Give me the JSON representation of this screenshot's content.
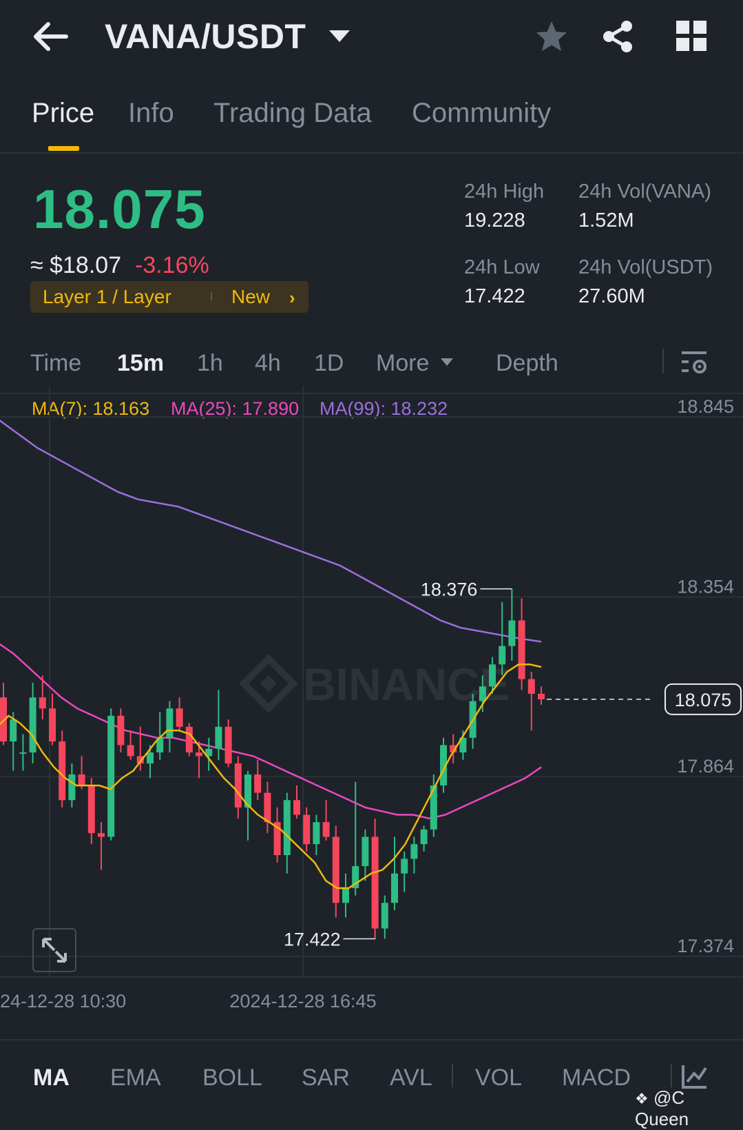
{
  "header": {
    "pair": "VANA/USDT",
    "icons": [
      "back-arrow-icon",
      "chevron-down-icon",
      "star-icon",
      "share-icon",
      "grid-icon"
    ]
  },
  "tabs": [
    {
      "label": "Price",
      "active": true
    },
    {
      "label": "Info",
      "active": false
    },
    {
      "label": "Trading Data",
      "active": false
    },
    {
      "label": "Community",
      "active": false
    }
  ],
  "ticker": {
    "last_price": "18.075",
    "fiat_price": "≈ $18.07",
    "change_pct": "-3.16%",
    "tag_category": "Layer 1 / Layer",
    "tag_new": "New",
    "high_label": "24h High",
    "high_value": "19.228",
    "low_label": "24h Low",
    "low_value": "17.422",
    "vol_base_label": "24h Vol(VANA)",
    "vol_base_value": "1.52M",
    "vol_quote_label": "24h Vol(USDT)",
    "vol_quote_value": "27.60M",
    "colors": {
      "up": "#2ebd85",
      "down": "#f6465d",
      "accent": "#f0b90b"
    }
  },
  "intervals": [
    {
      "label": "Time",
      "active": false
    },
    {
      "label": "15m",
      "active": true
    },
    {
      "label": "1h",
      "active": false
    },
    {
      "label": "4h",
      "active": false
    },
    {
      "label": "1D",
      "active": false
    },
    {
      "label": "More",
      "active": false
    },
    {
      "label": "Depth",
      "active": false
    }
  ],
  "ma_legend": {
    "ma7": "MA(7): 18.163",
    "ma25": "MA(25): 17.890",
    "ma99": "MA(99): 18.232"
  },
  "chart_data": {
    "type": "candlestick",
    "y_ticks": [
      "18.845",
      "18.354",
      "17.864",
      "17.374"
    ],
    "y_range": [
      17.34,
      18.9
    ],
    "x_labels": [
      "24-12-28 10:30",
      "2024-12-28 16:45"
    ],
    "current_price_label": "18.075",
    "current_price": 18.075,
    "high_marker": {
      "label": "18.376",
      "value": 18.376
    },
    "low_marker": {
      "label": "17.422",
      "value": 17.422
    },
    "watermark": "BINANCE",
    "colors": {
      "up": "#2ebd85",
      "down": "#f6465d",
      "ma7": "#f0b90b",
      "ma25": "#eb48c0",
      "ma99": "#9d6fe0"
    },
    "candles": [
      [
        18.08,
        18.12,
        17.95,
        17.96
      ],
      [
        17.96,
        18.04,
        17.88,
        18.02
      ],
      [
        17.93,
        17.98,
        17.88,
        17.93
      ],
      [
        17.93,
        18.12,
        17.9,
        18.08
      ],
      [
        18.08,
        18.14,
        18.02,
        18.05
      ],
      [
        18.05,
        18.09,
        17.95,
        17.96
      ],
      [
        17.96,
        17.99,
        17.78,
        17.8
      ],
      [
        17.8,
        17.9,
        17.78,
        17.87
      ],
      [
        17.87,
        17.92,
        17.83,
        17.84
      ],
      [
        17.84,
        17.86,
        17.68,
        17.71
      ],
      [
        17.71,
        17.74,
        17.61,
        17.7
      ],
      [
        17.7,
        18.05,
        17.69,
        18.03
      ],
      [
        18.03,
        18.05,
        17.93,
        17.95
      ],
      [
        17.95,
        17.99,
        17.91,
        17.92
      ],
      [
        17.92,
        18.0,
        17.88,
        17.9
      ],
      [
        17.9,
        17.95,
        17.86,
        17.93
      ],
      [
        17.93,
        18.04,
        17.91,
        17.97
      ],
      [
        17.97,
        18.07,
        17.93,
        18.05
      ],
      [
        18.05,
        18.08,
        17.99,
        18.0
      ],
      [
        18.0,
        18.01,
        17.92,
        17.93
      ],
      [
        17.93,
        17.96,
        17.86,
        17.92
      ],
      [
        17.92,
        17.97,
        17.88,
        17.94
      ],
      [
        17.94,
        18.1,
        17.91,
        18.0
      ],
      [
        18.0,
        18.02,
        17.89,
        17.9
      ],
      [
        17.9,
        17.92,
        17.75,
        17.78
      ],
      [
        17.78,
        17.88,
        17.69,
        17.87
      ],
      [
        17.87,
        17.91,
        17.8,
        17.82
      ],
      [
        17.82,
        17.85,
        17.71,
        17.74
      ],
      [
        17.74,
        17.78,
        17.63,
        17.65
      ],
      [
        17.65,
        17.82,
        17.6,
        17.8
      ],
      [
        17.8,
        17.84,
        17.75,
        17.76
      ],
      [
        17.76,
        17.78,
        17.66,
        17.68
      ],
      [
        17.68,
        17.76,
        17.65,
        17.74
      ],
      [
        17.74,
        17.8,
        17.69,
        17.7
      ],
      [
        17.7,
        17.73,
        17.48,
        17.52
      ],
      [
        17.52,
        17.6,
        17.48,
        17.56
      ],
      [
        17.56,
        17.85,
        17.54,
        17.62
      ],
      [
        17.62,
        17.72,
        17.58,
        17.7
      ],
      [
        17.7,
        17.75,
        17.42,
        17.45
      ],
      [
        17.45,
        17.54,
        17.422,
        17.52
      ],
      [
        17.52,
        17.7,
        17.5,
        17.6
      ],
      [
        17.6,
        17.66,
        17.55,
        17.64
      ],
      [
        17.64,
        17.7,
        17.6,
        17.68
      ],
      [
        17.68,
        17.73,
        17.66,
        17.72
      ],
      [
        17.72,
        17.87,
        17.7,
        17.84
      ],
      [
        17.84,
        17.97,
        17.82,
        17.95
      ],
      [
        17.95,
        17.98,
        17.9,
        17.93
      ],
      [
        17.93,
        17.99,
        17.91,
        17.97
      ],
      [
        17.97,
        18.09,
        17.94,
        18.07
      ],
      [
        18.07,
        18.14,
        18.04,
        18.11
      ],
      [
        18.11,
        18.19,
        18.09,
        18.17
      ],
      [
        18.17,
        18.34,
        18.14,
        18.22
      ],
      [
        18.22,
        18.376,
        18.18,
        18.29
      ],
      [
        18.29,
        18.35,
        18.1,
        18.13
      ],
      [
        18.13,
        18.15,
        17.99,
        18.09
      ],
      [
        18.09,
        18.11,
        18.06,
        18.075
      ]
    ],
    "ma7": [
      18.0,
      18.03,
      18.01,
      17.98,
      17.93,
      17.89,
      17.86,
      17.84,
      17.84,
      17.84,
      17.83,
      17.86,
      17.88,
      17.92,
      17.96,
      17.99,
      17.99,
      17.98,
      17.94,
      17.9,
      17.86,
      17.83,
      17.79,
      17.76,
      17.74,
      17.72,
      17.69,
      17.66,
      17.63,
      17.58,
      17.56,
      17.56,
      17.58,
      17.6,
      17.61,
      17.64,
      17.68,
      17.74,
      17.8,
      17.86,
      17.92,
      17.97,
      18.02,
      18.07,
      18.11,
      18.15,
      18.17,
      18.17,
      18.163
    ],
    "ma25": [
      18.23,
      18.2,
      18.16,
      18.12,
      18.08,
      18.05,
      18.03,
      18.01,
      17.99,
      17.98,
      17.97,
      17.97,
      17.96,
      17.95,
      17.94,
      17.93,
      17.92,
      17.9,
      17.88,
      17.86,
      17.84,
      17.82,
      17.8,
      17.78,
      17.77,
      17.76,
      17.76,
      17.75,
      17.76,
      17.78,
      17.8,
      17.82,
      17.84,
      17.86,
      17.89
    ],
    "ma99": [
      18.84,
      18.8,
      18.76,
      18.73,
      18.7,
      18.67,
      18.64,
      18.62,
      18.61,
      18.6,
      18.58,
      18.56,
      18.54,
      18.52,
      18.5,
      18.48,
      18.46,
      18.44,
      18.41,
      18.38,
      18.35,
      18.32,
      18.29,
      18.27,
      18.26,
      18.25,
      18.24,
      18.232
    ]
  },
  "indicators": [
    {
      "label": "MA",
      "active": true
    },
    {
      "label": "EMA",
      "active": false
    },
    {
      "label": "BOLL",
      "active": false
    },
    {
      "label": "SAR",
      "active": false
    },
    {
      "label": "AVL",
      "active": false
    },
    {
      "label": "VOL",
      "active": false
    },
    {
      "label": "MACD",
      "active": false
    }
  ],
  "watermark_user": "@C Queen"
}
